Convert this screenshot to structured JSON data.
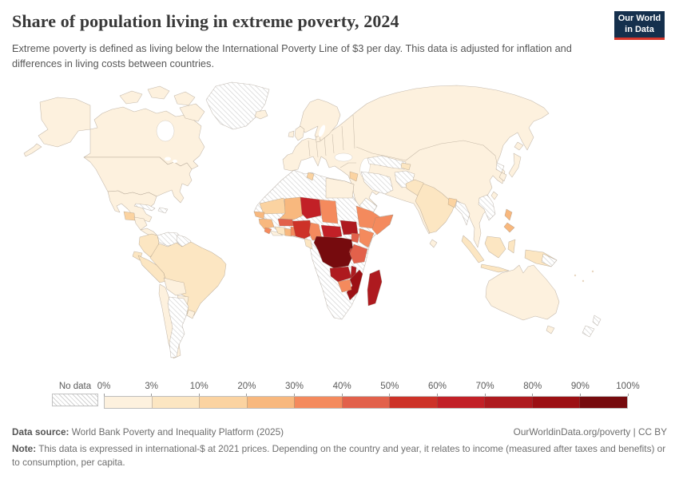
{
  "header": {
    "title": "Share of population living in extreme poverty, 2024",
    "subtitle": "Extreme poverty is defined as living below the International Poverty Line of $3 per day. This data is adjusted for inflation and differences in living costs between countries.",
    "logo": {
      "line1": "Our World",
      "line2": "in Data",
      "navy": "#15304d",
      "red": "#d7352a"
    }
  },
  "legend": {
    "no_data_label": "No data",
    "tick_labels": [
      "0%",
      "3%",
      "10%",
      "20%",
      "30%",
      "40%",
      "50%",
      "60%",
      "70%",
      "80%",
      "90%",
      "100%"
    ],
    "band_colors": [
      "#fdf1de",
      "#fce6c2",
      "#fbd3a1",
      "#f8b87e",
      "#f48a5d",
      "#e2614b",
      "#cd3228",
      "#c22027",
      "#ae1a1f",
      "#9c1014",
      "#760b0e"
    ]
  },
  "footer": {
    "source_label": "Data source:",
    "source_text": " World Bank Poverty and Inequality Platform (2025)",
    "link_text": "OurWorldinData.org/poverty | CC BY",
    "note_label": "Note:",
    "note_text": " This data is expressed in international-$ at 2021 prices. Depending on the country and year, it relates to income (measured after taxes and benefits) or to consumption, per capita."
  },
  "chart_data": {
    "type": "heatmap",
    "subtype": "choropleth-world-map",
    "title": "Share of population living in extreme poverty, 2024",
    "unit": "% of population living below the $3/day International Poverty Line",
    "legend_bins": [
      "0-3",
      "3-10",
      "10-20",
      "20-30",
      "30-40",
      "40-50",
      "50-60",
      "60-70",
      "70-80",
      "80-90",
      "90-100",
      "no-data"
    ],
    "regions": {
      "canada": "0-3",
      "arctic-islands": "0-3",
      "alaska": "0-3",
      "greenland": "no-data",
      "iceland": "0-3",
      "united-states": "0-3",
      "mexico": "0-3",
      "guatemala": "10-20",
      "honduras-nicaragua": "0-3",
      "costa-rica-panama": "0-3",
      "cuba": "no-data",
      "hispaniola": "no-data",
      "colombia": "3-10",
      "venezuela": "no-data",
      "guyana-suriname": "no-data",
      "ecuador": "3-10",
      "peru": "3-10",
      "brazil": "3-10",
      "bolivia": "0-3",
      "paraguay": "0-3",
      "chile": "0-3",
      "argentina": "no-data",
      "uruguay": "0-3",
      "eurasia": "0-3",
      "scandinavia": "0-3",
      "denmark": "0-3",
      "britain": "0-3",
      "ireland": "0-3",
      "syria": "10-20",
      "iran": "no-data",
      "central-asia": "no-data",
      "tajikistan": "3-10",
      "afghanistan": "no-data",
      "pakistan": "3-10",
      "india": "3-10",
      "bangladesh": "10-20",
      "myanmar": "no-data",
      "laos-vietnam": "no-data",
      "north-korea": "no-data",
      "south-korea": "0-3",
      "yemen-oman": "no-data",
      "japan": "0-3",
      "taiwan": "0-3",
      "philippines": "20-30",
      "sri-lanka": "0-3",
      "indonesia": "3-10",
      "new-guinea": "3-10",
      "papua-east": "no-data",
      "africa": "no-data",
      "egypt": "0-3",
      "tunisia": "10-20",
      "mauritania": "10-20",
      "senegal": "20-30",
      "guinea": "20-30",
      "sierra-leone": "30-40",
      "liberia": "0-3",
      "ivory-coast": "3-10",
      "ghana": "20-30",
      "togo-benin": "30-40",
      "burkina-faso": "40-50",
      "mali": "20-30",
      "niger": "60-70",
      "chad": "30-40",
      "nigeria": "50-60",
      "cameroon": "30-40",
      "central-african-republic": "60-70",
      "south-sudan": "70-80",
      "ethiopia": "30-40",
      "somalia": "30-40",
      "kenya": "30-40",
      "uganda": "40-50",
      "democratic-republic-of-congo": "90-100",
      "rwanda-burundi": "50-60",
      "tanzania": "40-50",
      "gabon": "3-10",
      "zambia": "70-80",
      "malawi": "70-80",
      "mozambique": "80-90",
      "zimbabwe": "30-40",
      "madagascar": "70-80",
      "australia": "0-3",
      "new-zealand": "no-data"
    }
  }
}
